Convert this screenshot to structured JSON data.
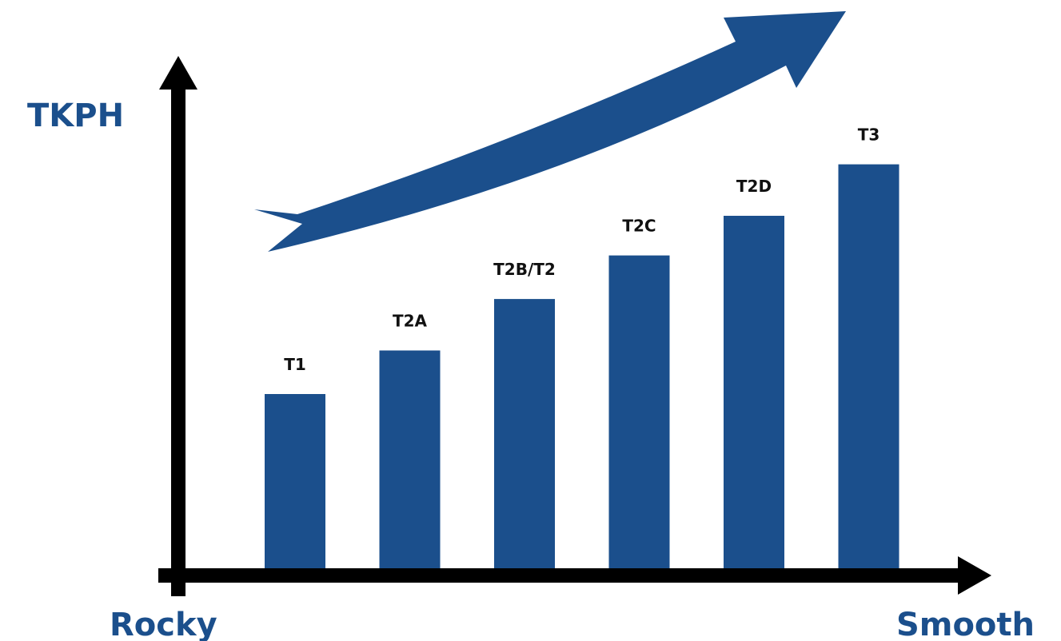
{
  "chart_data": {
    "type": "bar",
    "categories": [
      "T1",
      "T2A",
      "T2B/T2",
      "T2C",
      "T2D",
      "T3"
    ],
    "values": [
      2.2,
      2.75,
      3.4,
      3.95,
      4.45,
      5.1
    ],
    "ylabel": "TKPH",
    "x_start_label": "Rocky",
    "x_end_label": "Smooth",
    "ylim": [
      0,
      5.5
    ],
    "grid": false,
    "bar_color": "#1b4f8c",
    "axis_color": "#000000",
    "label_color": "#1b4f8c",
    "trend_arrow": true
  }
}
